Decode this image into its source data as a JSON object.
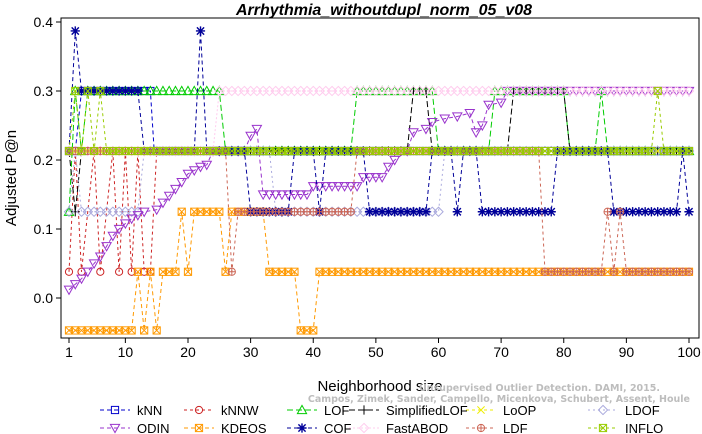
{
  "chart_data": {
    "type": "line",
    "title": "Arrhythmia_withoutdupl_norm_05_v08",
    "xlabel": "Neighborhood size",
    "ylabel": "Adjusted P@n",
    "xlim": [
      1,
      100
    ],
    "ylim": [
      -0.05,
      0.4
    ],
    "xticks": [
      1,
      10,
      20,
      30,
      40,
      50,
      60,
      70,
      80,
      90,
      100
    ],
    "yticks": [
      0.0,
      0.1,
      0.2,
      0.3,
      0.4
    ],
    "ytick_labels": [
      "0.0",
      "0.1",
      "0.2",
      "0.3",
      "0.4"
    ],
    "legend_position": "bottom",
    "watermark": [
      "Campos, Zimek, Sander, Campello, Micenkova, Schubert, Assent, Houle",
      "Unsupervised Outlier Detection. DAMI, 2015."
    ],
    "series": [
      {
        "name": "kNN",
        "color": "#0000cc",
        "marker": "square",
        "dash": "4,3",
        "segments": [
          [
            1,
            0.213
          ],
          [
            2,
            0.213
          ],
          [
            3,
            0.3
          ],
          [
            14,
            0.3
          ],
          [
            14.6,
            0.213
          ],
          [
            100,
            0.213
          ]
        ]
      },
      {
        "name": "kNNW",
        "color": "#cc2222",
        "marker": "circle",
        "dash": "3,3",
        "segments": [
          [
            1,
            0.038
          ],
          [
            2,
            0.213
          ],
          [
            3,
            0.038
          ],
          [
            5,
            0.213
          ],
          [
            6,
            0.038
          ],
          [
            8,
            0.213
          ],
          [
            9,
            0.038
          ],
          [
            10,
            0.213
          ],
          [
            11,
            0.038
          ],
          [
            12,
            0.213
          ],
          [
            13,
            0.038
          ],
          [
            14,
            0.038
          ],
          [
            15,
            0.213
          ],
          [
            100,
            0.213
          ]
        ]
      },
      {
        "name": "LOF",
        "color": "#00cc00",
        "marker": "triangle",
        "dash": "6,3",
        "segments": [
          [
            1,
            0.125
          ],
          [
            2,
            0.3
          ],
          [
            3,
            0.213
          ],
          [
            4,
            0.3
          ],
          [
            25,
            0.3
          ],
          [
            26,
            0.213
          ],
          [
            46,
            0.213
          ],
          [
            47,
            0.3
          ],
          [
            59,
            0.3
          ],
          [
            60,
            0.213
          ],
          [
            68,
            0.213
          ],
          [
            69,
            0.3
          ],
          [
            80,
            0.3
          ],
          [
            81,
            0.213
          ],
          [
            85,
            0.213
          ],
          [
            86,
            0.3
          ],
          [
            87,
            0.213
          ],
          [
            100,
            0.213
          ]
        ]
      },
      {
        "name": "SimplifiedLOF",
        "color": "#000000",
        "marker": "plus",
        "dash": "6,3",
        "segments": [
          [
            1,
            0.213
          ],
          [
            2,
            0.125
          ],
          [
            3,
            0.213
          ],
          [
            55,
            0.213
          ],
          [
            56,
            0.3
          ],
          [
            58,
            0.3
          ],
          [
            59,
            0.213
          ],
          [
            71,
            0.213
          ],
          [
            72,
            0.3
          ],
          [
            80,
            0.3
          ],
          [
            81,
            0.213
          ],
          [
            100,
            0.213
          ]
        ]
      },
      {
        "name": "LoOP",
        "color": "#eeee00",
        "marker": "x",
        "dash": "3,3",
        "segments": [
          [
            1,
            0.213
          ],
          [
            100,
            0.213
          ]
        ]
      },
      {
        "name": "LDOF",
        "color": "#aaaadd",
        "marker": "diamond",
        "dash": "2,3",
        "segments": [
          [
            1,
            0.125
          ],
          [
            2,
            0.213
          ],
          [
            3,
            0.125
          ],
          [
            12,
            0.125
          ],
          [
            13,
            0.213
          ],
          [
            33,
            0.213
          ],
          [
            34,
            0.125
          ],
          [
            60,
            0.125
          ],
          [
            61,
            0.213
          ],
          [
            100,
            0.213
          ]
        ]
      },
      {
        "name": "ODIN",
        "color": "#9933cc",
        "marker": "triangle-down",
        "dash": "4,3",
        "segments": [
          [
            1,
            0.012
          ],
          [
            2,
            0.02
          ],
          [
            3,
            0.028
          ],
          [
            4,
            0.038
          ],
          [
            5,
            0.05
          ],
          [
            6,
            0.06
          ],
          [
            7,
            0.075
          ],
          [
            8,
            0.09
          ],
          [
            9,
            0.1
          ],
          [
            10,
            0.108
          ],
          [
            11,
            0.115
          ],
          [
            12,
            0.12
          ],
          [
            13,
            0.125
          ],
          [
            15,
            0.128
          ],
          [
            16,
            0.138
          ],
          [
            17,
            0.148
          ],
          [
            18,
            0.158
          ],
          [
            19,
            0.168
          ],
          [
            20,
            0.18
          ],
          [
            21,
            0.185
          ],
          [
            22,
            0.19
          ],
          [
            23,
            0.193
          ],
          [
            24,
            0.213
          ],
          [
            29,
            0.213
          ],
          [
            30,
            0.235
          ],
          [
            31,
            0.245
          ],
          [
            32,
            0.15
          ],
          [
            39,
            0.15
          ],
          [
            40,
            0.162
          ],
          [
            47,
            0.162
          ],
          [
            48,
            0.175
          ],
          [
            51,
            0.175
          ],
          [
            52,
            0.19
          ],
          [
            53,
            0.2
          ],
          [
            55,
            0.213
          ],
          [
            56,
            0.24
          ],
          [
            58,
            0.245
          ],
          [
            59,
            0.255
          ],
          [
            61,
            0.26
          ],
          [
            63,
            0.263
          ],
          [
            65,
            0.268
          ],
          [
            66,
            0.24
          ],
          [
            67,
            0.25
          ],
          [
            68,
            0.28
          ],
          [
            70,
            0.283
          ],
          [
            71,
            0.3
          ],
          [
            100,
            0.3
          ]
        ]
      },
      {
        "name": "KDEOS",
        "color": "#ff9900",
        "marker": "square-x",
        "dash": "4,3",
        "segments": [
          [
            1,
            -0.047
          ],
          [
            11,
            -0.047
          ],
          [
            12,
            0.038
          ],
          [
            13,
            -0.047
          ],
          [
            14,
            0.038
          ],
          [
            15,
            -0.047
          ],
          [
            16,
            0.038
          ],
          [
            18,
            0.038
          ],
          [
            19,
            0.125
          ],
          [
            20,
            0.038
          ],
          [
            21,
            0.125
          ],
          [
            25,
            0.125
          ],
          [
            26,
            0.038
          ],
          [
            27,
            0.125
          ],
          [
            32,
            0.125
          ],
          [
            33,
            0.038
          ],
          [
            37,
            0.038
          ],
          [
            38,
            -0.047
          ],
          [
            40,
            -0.047
          ],
          [
            41,
            0.038
          ],
          [
            100,
            0.038
          ]
        ]
      },
      {
        "name": "COF",
        "color": "#000099",
        "marker": "asterisk",
        "dash": "4,3",
        "segments": [
          [
            1,
            0.213
          ],
          [
            2,
            0.387
          ],
          [
            3,
            0.3
          ],
          [
            12,
            0.3
          ],
          [
            13,
            0.213
          ],
          [
            21,
            0.213
          ],
          [
            22,
            0.387
          ],
          [
            23,
            0.213
          ],
          [
            29,
            0.213
          ],
          [
            30,
            0.125
          ],
          [
            36,
            0.125
          ],
          [
            37,
            0.213
          ],
          [
            40,
            0.213
          ],
          [
            41,
            0.125
          ],
          [
            42,
            0.213
          ],
          [
            48,
            0.213
          ],
          [
            49,
            0.125
          ],
          [
            58,
            0.125
          ],
          [
            59,
            0.213
          ],
          [
            62,
            0.213
          ],
          [
            63,
            0.125
          ],
          [
            64,
            0.213
          ],
          [
            66,
            0.213
          ],
          [
            67,
            0.125
          ],
          [
            78,
            0.125
          ],
          [
            79,
            0.213
          ],
          [
            87,
            0.213
          ],
          [
            88,
            0.125
          ],
          [
            98,
            0.125
          ],
          [
            99,
            0.213
          ],
          [
            100,
            0.125
          ]
        ]
      },
      {
        "name": "FastABOD",
        "color": "#ffccee",
        "marker": "diamond",
        "dash": "2,2",
        "segments": [
          [
            1,
            0.213
          ],
          [
            24,
            0.213
          ],
          [
            25,
            0.3
          ],
          [
            100,
            0.3
          ]
        ]
      },
      {
        "name": "LDF",
        "color": "#cc6655",
        "marker": "circle-plus",
        "dash": "3,3",
        "segments": [
          [
            1,
            0.213
          ],
          [
            26,
            0.213
          ],
          [
            27,
            0.038
          ],
          [
            28,
            0.125
          ],
          [
            46,
            0.125
          ],
          [
            47,
            0.213
          ],
          [
            76,
            0.213
          ],
          [
            77,
            0.038
          ],
          [
            86,
            0.038
          ],
          [
            87,
            0.125
          ],
          [
            88,
            0.038
          ],
          [
            89,
            0.125
          ],
          [
            90,
            0.038
          ],
          [
            100,
            0.038
          ]
        ]
      },
      {
        "name": "INFLO",
        "color": "#99cc00",
        "marker": "square-x",
        "dash": "3,3",
        "segments": [
          [
            1,
            0.213
          ],
          [
            2,
            0.3
          ],
          [
            3,
            0.213
          ],
          [
            4,
            0.3
          ],
          [
            5,
            0.213
          ],
          [
            6,
            0.3
          ],
          [
            7,
            0.213
          ],
          [
            30,
            0.213
          ],
          [
            31,
            0.213
          ],
          [
            94,
            0.213
          ],
          [
            95,
            0.3
          ],
          [
            96,
            0.213
          ],
          [
            100,
            0.213
          ]
        ]
      }
    ]
  }
}
